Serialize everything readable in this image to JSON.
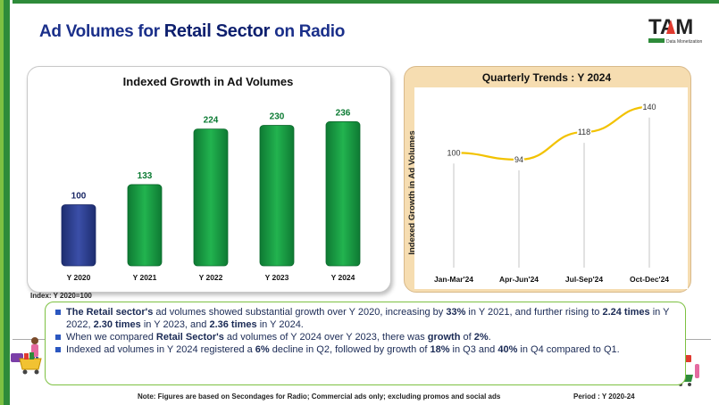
{
  "header": {
    "title_prefix": "Ad Volumes for ",
    "title_highlight": "Retail Sector",
    "title_suffix": " on Radio",
    "logo_text": "TAM",
    "logo_tagline": "Data Monetization"
  },
  "colors": {
    "brand_green": "#2e8b3a",
    "accent_green": "#7dc142",
    "title_blue": "#1a2f8a",
    "bar_first": "#2c3f8f",
    "bar_green": "#1aa24a",
    "line_yellow": "#f2c200",
    "trend_panel": "#f6ddb1"
  },
  "chart_data": [
    {
      "type": "bar",
      "title": "Indexed Growth in Ad Volumes",
      "categories": [
        "Y 2020",
        "Y 2021",
        "Y 2022",
        "Y 2023",
        "Y 2024"
      ],
      "values": [
        100,
        133,
        224,
        230,
        236
      ],
      "ylim": [
        0,
        260
      ],
      "grid": false,
      "legend": "none"
    },
    {
      "type": "line",
      "title": "Quarterly Trends : Y 2024",
      "ylabel": "Indexed Growth in Ad Volumes",
      "categories": [
        "Jan-Mar'24",
        "Apr-Jun'24",
        "Jul-Sep'24",
        "Oct-Dec'24"
      ],
      "values": [
        100,
        94,
        118,
        140
      ],
      "ylim": [
        0,
        160
      ],
      "grid": false,
      "legend": "none"
    }
  ],
  "index_note": "Index: Y 2020=100",
  "bullets": [
    [
      {
        "t": "The Retail sector's",
        "b": true
      },
      {
        "t": " ad volumes showed substantial growth over Y 2020, increasing by ",
        "b": false
      },
      {
        "t": "33%",
        "b": true
      },
      {
        "t": " in Y 2021, and further rising to ",
        "b": false
      },
      {
        "t": "2.24 times",
        "b": true
      },
      {
        "t": " in Y 2022, ",
        "b": false
      },
      {
        "t": "2.30 times",
        "b": true
      },
      {
        "t": " in Y 2023, and ",
        "b": false
      },
      {
        "t": "2.36 times",
        "b": true
      },
      {
        "t": " in Y 2024.",
        "b": false
      }
    ],
    [
      {
        "t": "When we compared ",
        "b": false
      },
      {
        "t": "Retail Sector's",
        "b": true
      },
      {
        "t": " ad volumes of Y 2024 over Y 2023, there was ",
        "b": false
      },
      {
        "t": "growth",
        "b": true
      },
      {
        "t": " of ",
        "b": false
      },
      {
        "t": "2%",
        "b": true
      },
      {
        "t": ".",
        "b": false
      }
    ],
    [
      {
        "t": "Indexed ad volumes in Y 2024 registered a ",
        "b": false
      },
      {
        "t": "6%",
        "b": true
      },
      {
        "t": " decline in Q2, followed by growth of ",
        "b": false
      },
      {
        "t": "18%",
        "b": true
      },
      {
        "t": " in Q3 and ",
        "b": false
      },
      {
        "t": "40%",
        "b": true
      },
      {
        "t": " in Q4 compared to Q1.",
        "b": false
      }
    ]
  ],
  "footer": {
    "note": "Note: Figures are based on Secondages for Radio; Commercial ads only; excluding promos and social ads",
    "period": "Period : Y 2020-24"
  }
}
